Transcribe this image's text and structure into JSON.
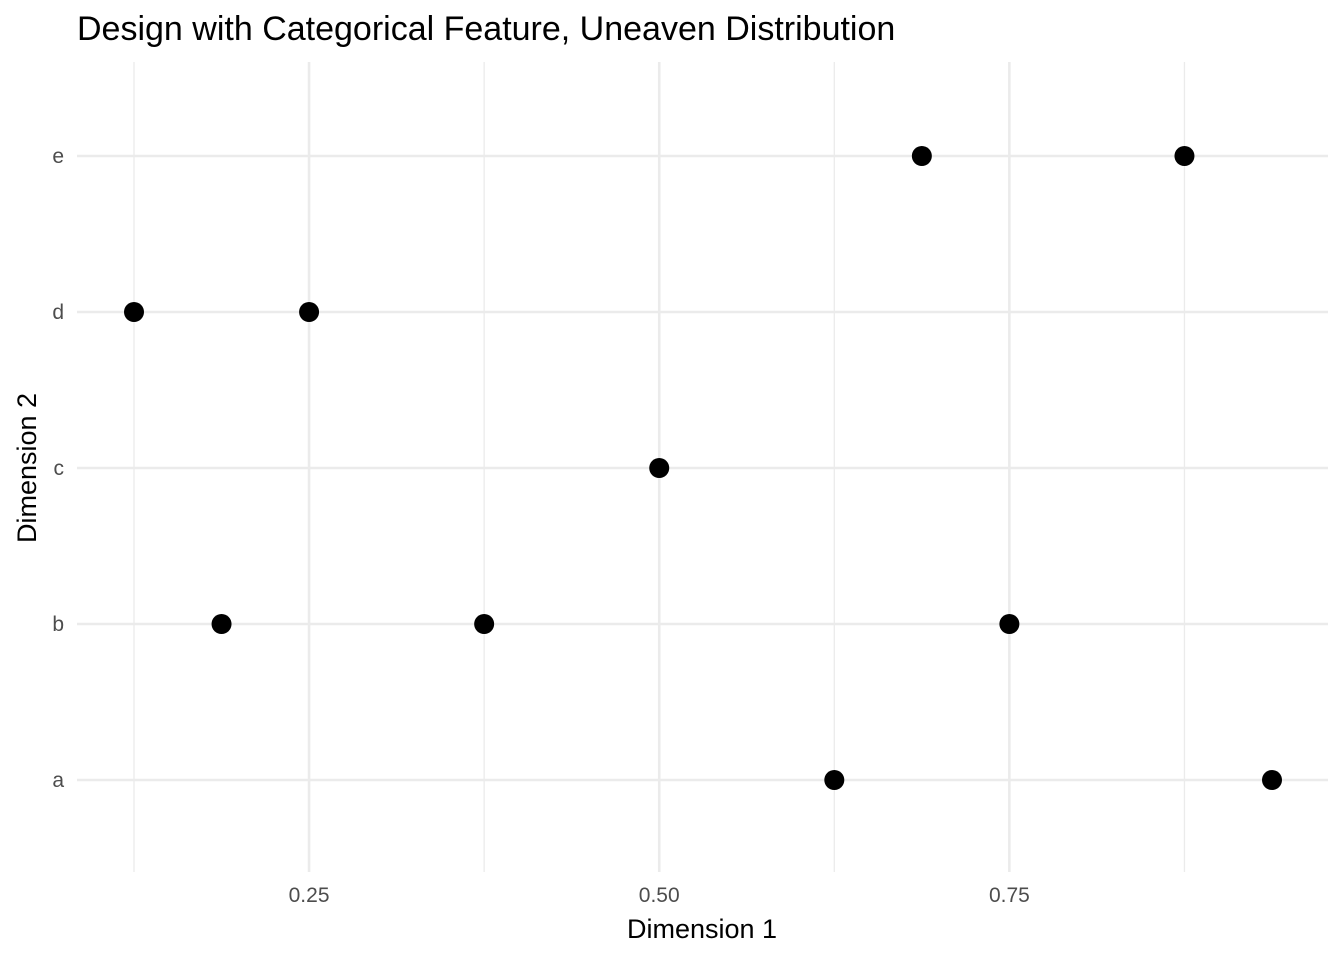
{
  "chart_data": {
    "type": "scatter",
    "title": "Design with Categorical Feature, Uneaven Distribution",
    "xlabel": "Dimension 1",
    "ylabel": "Dimension 2",
    "xlim": [
      0.0625,
      0.9375
    ],
    "x_ticks": [
      {
        "value": 0.25,
        "label": "0.25"
      },
      {
        "value": 0.5,
        "label": "0.50"
      },
      {
        "value": 0.75,
        "label": "0.75"
      }
    ],
    "x_minor_ticks": [
      0.125,
      0.375,
      0.625,
      0.875
    ],
    "categories_y": [
      "a",
      "b",
      "c",
      "d",
      "e"
    ],
    "grid": true,
    "legend": "none",
    "colors": {
      "point": "#000000",
      "grid": "#ebebeb",
      "tick_text": "#4d4d4d",
      "text": "#000000",
      "background": "#ffffff"
    },
    "points": [
      {
        "x": 0.125,
        "y": "d"
      },
      {
        "x": 0.1875,
        "y": "b"
      },
      {
        "x": 0.25,
        "y": "d"
      },
      {
        "x": 0.375,
        "y": "b"
      },
      {
        "x": 0.5,
        "y": "c"
      },
      {
        "x": 0.625,
        "y": "a"
      },
      {
        "x": 0.6875,
        "y": "e"
      },
      {
        "x": 0.75,
        "y": "b"
      },
      {
        "x": 0.875,
        "y": "e"
      },
      {
        "x": 0.9375,
        "y": "a"
      }
    ]
  }
}
